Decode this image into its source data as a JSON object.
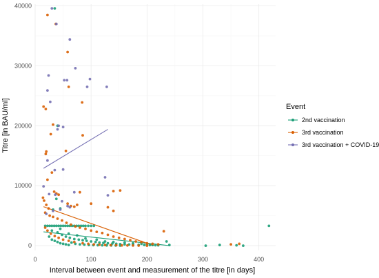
{
  "chart_data": {
    "type": "scatter",
    "title": "",
    "xlabel": "Interval between event and measurement of the titre [in days]",
    "ylabel": "Titre [in BAU/ml]",
    "xlim": [
      0,
      430
    ],
    "ylim": [
      -800,
      40300
    ],
    "x_ticks": [
      0,
      100,
      200,
      300,
      400
    ],
    "y_ticks": [
      0,
      10000,
      20000,
      30000,
      40000
    ],
    "x_tick_labels": [
      "0",
      "100",
      "200",
      "300",
      "400"
    ],
    "y_tick_labels": [
      "0",
      "10000",
      "20000",
      "30000",
      "40000"
    ],
    "grid": true,
    "legend": {
      "title": "Event",
      "placement": "right",
      "entries": [
        "2nd vaccination",
        "3rd vaccination",
        "3rd vaccination + COVID-19"
      ]
    },
    "series": [
      {
        "name": "2nd vaccination",
        "color": "#1b9e77",
        "points": [
          [
            18,
            3300
          ],
          [
            22,
            3300
          ],
          [
            26,
            3300
          ],
          [
            30,
            3300
          ],
          [
            34,
            3300
          ],
          [
            38,
            3300
          ],
          [
            42,
            3300
          ],
          [
            46,
            3300
          ],
          [
            50,
            3300
          ],
          [
            54,
            3300
          ],
          [
            58,
            3300
          ],
          [
            62,
            3300
          ],
          [
            66,
            3300
          ],
          [
            70,
            3300
          ],
          [
            74,
            3300
          ],
          [
            78,
            3300
          ],
          [
            82,
            3300
          ],
          [
            86,
            3300
          ],
          [
            90,
            3300
          ],
          [
            95,
            3300
          ],
          [
            100,
            3300
          ],
          [
            105,
            3300
          ],
          [
            418,
            3300
          ],
          [
            35,
            39600
          ],
          [
            40,
            20000
          ],
          [
            32,
            6000
          ],
          [
            38,
            7800
          ],
          [
            45,
            6200
          ],
          [
            40,
            2200
          ],
          [
            48,
            1800
          ],
          [
            55,
            1500
          ],
          [
            62,
            1300
          ],
          [
            70,
            1100
          ],
          [
            78,
            1000
          ],
          [
            85,
            900
          ],
          [
            92,
            800
          ],
          [
            100,
            700
          ],
          [
            108,
            600
          ],
          [
            115,
            500
          ],
          [
            122,
            450
          ],
          [
            130,
            400
          ],
          [
            138,
            350
          ],
          [
            145,
            300
          ],
          [
            152,
            250
          ],
          [
            160,
            200
          ],
          [
            168,
            180
          ],
          [
            175,
            150
          ],
          [
            185,
            120
          ],
          [
            195,
            100
          ],
          [
            205,
            80
          ],
          [
            215,
            60
          ],
          [
            25,
            1500
          ],
          [
            30,
            1000
          ],
          [
            35,
            800
          ],
          [
            40,
            600
          ],
          [
            45,
            400
          ],
          [
            50,
            300
          ],
          [
            55,
            200
          ],
          [
            60,
            100
          ],
          [
            65,
            500
          ],
          [
            72,
            300
          ],
          [
            80,
            200
          ],
          [
            88,
            150
          ],
          [
            96,
            100
          ],
          [
            104,
            80
          ],
          [
            112,
            60
          ],
          [
            120,
            50
          ],
          [
            128,
            40
          ],
          [
            136,
            30
          ],
          [
            144,
            20
          ],
          [
            152,
            10
          ],
          [
            30,
            2500
          ],
          [
            45,
            2800
          ],
          [
            60,
            2000
          ],
          [
            75,
            1700
          ],
          [
            90,
            1200
          ],
          [
            110,
            1000
          ],
          [
            125,
            700
          ],
          [
            140,
            600
          ],
          [
            160,
            500
          ],
          [
            175,
            400
          ],
          [
            190,
            300
          ],
          [
            200,
            200
          ],
          [
            210,
            100
          ],
          [
            220,
            50
          ],
          [
            235,
            700
          ],
          [
            240,
            100
          ],
          [
            305,
            0
          ],
          [
            330,
            100
          ],
          [
            360,
            50
          ],
          [
            372,
            0
          ]
        ]
      },
      {
        "name": "3rd vaccination",
        "color": "#d95f02",
        "points": [
          [
            22,
            38500
          ],
          [
            37,
            37000
          ],
          [
            58,
            32300
          ],
          [
            60,
            26500
          ],
          [
            84,
            23900
          ],
          [
            15,
            23200
          ],
          [
            19,
            22800
          ],
          [
            32,
            20200
          ],
          [
            28,
            18600
          ],
          [
            19,
            15300
          ],
          [
            20,
            15700
          ],
          [
            85,
            18400
          ],
          [
            55,
            15800
          ],
          [
            22,
            11000
          ],
          [
            34,
            9000
          ],
          [
            38,
            8700
          ],
          [
            42,
            8500
          ],
          [
            30,
            12200
          ],
          [
            80,
            8900
          ],
          [
            140,
            9100
          ],
          [
            152,
            9200
          ],
          [
            58,
            7000
          ],
          [
            64,
            6600
          ],
          [
            70,
            6500
          ],
          [
            75,
            6800
          ],
          [
            100,
            7000
          ],
          [
            130,
            6400
          ],
          [
            140,
            5800
          ],
          [
            14,
            8000
          ],
          [
            16,
            7500
          ],
          [
            20,
            6800
          ],
          [
            24,
            6200
          ],
          [
            18,
            5500
          ],
          [
            26,
            5000
          ],
          [
            32,
            4800
          ],
          [
            40,
            4500
          ],
          [
            48,
            4200
          ],
          [
            56,
            3800
          ],
          [
            64,
            3500
          ],
          [
            72,
            3200
          ],
          [
            80,
            3000
          ],
          [
            90,
            2800
          ],
          [
            100,
            2500
          ],
          [
            110,
            2300
          ],
          [
            120,
            2100
          ],
          [
            130,
            1800
          ],
          [
            140,
            1500
          ],
          [
            150,
            1300
          ],
          [
            160,
            1100
          ],
          [
            170,
            900
          ],
          [
            180,
            700
          ],
          [
            190,
            600
          ],
          [
            200,
            400
          ],
          [
            210,
            300
          ],
          [
            220,
            200
          ],
          [
            230,
            2400
          ],
          [
            18,
            3000
          ],
          [
            22,
            2500
          ],
          [
            28,
            2000
          ],
          [
            35,
            1600
          ],
          [
            42,
            1300
          ],
          [
            50,
            1000
          ],
          [
            60,
            800
          ],
          [
            70,
            600
          ],
          [
            85,
            400
          ],
          [
            95,
            300
          ],
          [
            105,
            200
          ],
          [
            115,
            150
          ],
          [
            125,
            100
          ],
          [
            135,
            80
          ],
          [
            145,
            60
          ],
          [
            155,
            40
          ],
          [
            165,
            30
          ],
          [
            175,
            20
          ],
          [
            185,
            10
          ],
          [
            200,
            0
          ],
          [
            350,
            200
          ],
          [
            365,
            300
          ]
        ]
      },
      {
        "name": "3rd vaccination + COVID-19",
        "color": "#7570b3",
        "points": [
          [
            30,
            39600
          ],
          [
            38,
            37000
          ],
          [
            62,
            34400
          ],
          [
            72,
            29600
          ],
          [
            24,
            28400
          ],
          [
            98,
            27800
          ],
          [
            52,
            27600
          ],
          [
            57,
            27600
          ],
          [
            93,
            26500
          ],
          [
            128,
            26500
          ],
          [
            22,
            25900
          ],
          [
            27,
            24000
          ],
          [
            42,
            20000
          ],
          [
            40,
            19400
          ],
          [
            50,
            19800
          ],
          [
            22,
            14200
          ],
          [
            35,
            12600
          ],
          [
            50,
            12700
          ],
          [
            125,
            11400
          ],
          [
            15,
            9900
          ],
          [
            25,
            8600
          ],
          [
            36,
            8500
          ],
          [
            70,
            8900
          ],
          [
            48,
            7400
          ],
          [
            58,
            6600
          ],
          [
            62,
            6400
          ],
          [
            45,
            6000
          ],
          [
            32,
            5800
          ],
          [
            20,
            5300
          ],
          [
            130,
            8400
          ]
        ]
      }
    ],
    "trend_lines": [
      {
        "series": "2nd vaccination",
        "x": [
          15,
          240
        ],
        "y": [
          2300,
          0
        ]
      },
      {
        "series": "3rd vaccination",
        "x": [
          15,
          212
        ],
        "y": [
          6500,
          0
        ]
      },
      {
        "series": "3rd vaccination + COVID-19",
        "x": [
          15,
          130
        ],
        "y": [
          12900,
          19400
        ]
      }
    ]
  }
}
